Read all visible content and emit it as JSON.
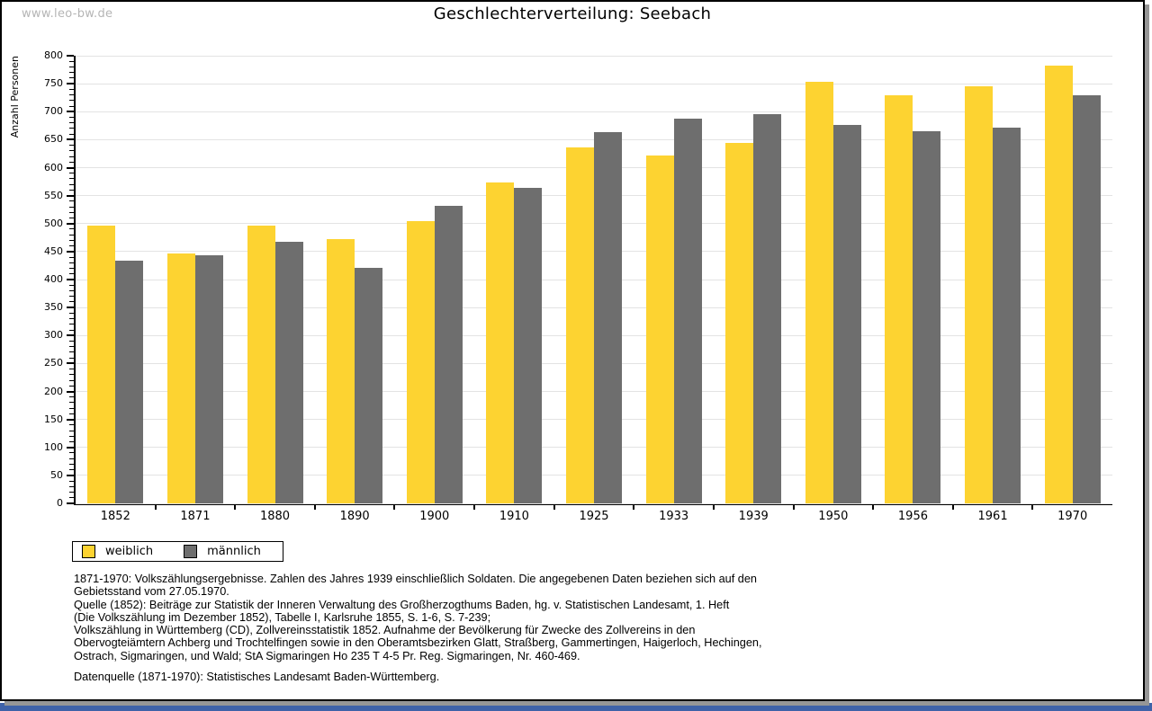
{
  "watermark": "www.leo-bw.de",
  "chart_data": {
    "type": "bar",
    "title": "Geschlechterverteilung: Seebach",
    "ylabel": "Anzahl Personen",
    "xlabel": "",
    "ylim": [
      0,
      800
    ],
    "ytick_step": 50,
    "yminor_step": 10,
    "grid": true,
    "legend_position": "bottom-left",
    "categories": [
      "1852",
      "1871",
      "1880",
      "1890",
      "1900",
      "1910",
      "1925",
      "1933",
      "1939",
      "1950",
      "1956",
      "1961",
      "1970"
    ],
    "series": [
      {
        "name": "weiblich",
        "color": "#fdd331",
        "values": [
          497,
          446,
          497,
          473,
          505,
          574,
          636,
          621,
          645,
          754,
          730,
          745,
          783
        ]
      },
      {
        "name": "männlich",
        "color": "#6e6e6e",
        "values": [
          433,
          443,
          468,
          421,
          531,
          564,
          663,
          687,
          696,
          677,
          665,
          671,
          730
        ]
      }
    ]
  },
  "notes": {
    "lines": [
      "1871-1970: Volkszählungsergebnisse. Zahlen des Jahres 1939 einschließlich Soldaten. Die angegebenen Daten beziehen sich auf den",
      "Gebietsstand vom 27.05.1970.",
      "Quelle (1852): Beiträge zur Statistik der Inneren Verwaltung des Großherzogthums Baden, hg. v. Statistischen Landesamt, 1. Heft",
      "(Die Volkszählung im Dezember 1852), Tabelle I, Karlsruhe 1855, S. 1-6, S. 7-239;",
      "Volkszählung in Württemberg (CD), Zollvereinsstatistik 1852. Aufnahme der Bevölkerung für Zwecke des Zollvereins in den",
      "Obervogteiämtern Achberg und Trochtelfingen sowie in den Oberamtsbezirken Glatt, Straßberg, Gammertingen, Haigerloch, Hechingen,",
      "Ostrach, Sigmaringen, und Wald; StA Sigmaringen Ho 235 T 4-5 Pr. Reg. Sigmaringen, Nr. 460-469."
    ],
    "datasource": "Datenquelle (1871-1970): Statistisches Landesamt Baden-Württemberg."
  },
  "colors": {
    "female_bar": "#fdd331",
    "male_bar": "#6e6e6e",
    "gridline": "#e3e3e3",
    "axis": "#000000",
    "watermark_text": "#b5b5b5",
    "page_shadow": "#969696",
    "footer_bar": "#3f62a8"
  }
}
